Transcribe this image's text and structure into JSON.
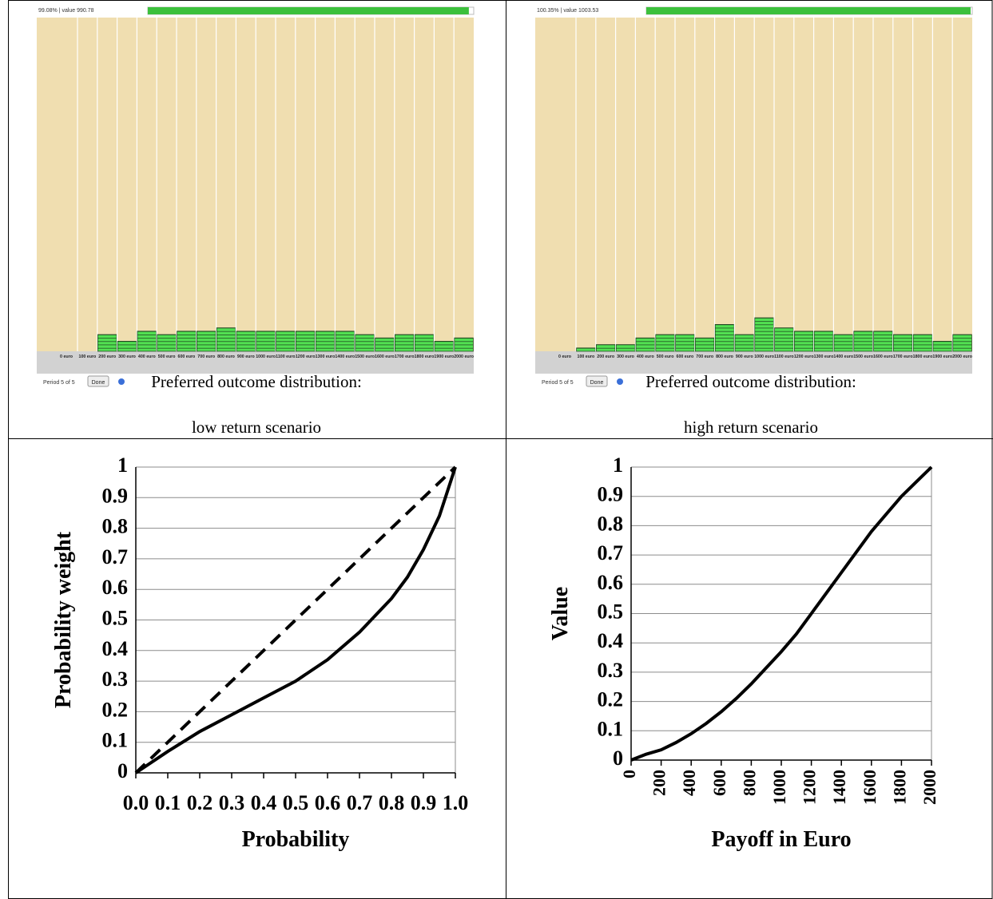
{
  "ui": [
    {
      "status": "99.08% | value 990.78",
      "period": "Period 5 of 5",
      "button": "Done",
      "caption": [
        "Preferred outcome distribution:",
        "low return scenario"
      ]
    },
    {
      "status": "100.35% | value 1003.53",
      "period": "Period 5 of 5",
      "button": "Done",
      "caption": [
        "Preferred outcome distribution:",
        "high return scenario"
      ]
    }
  ],
  "chart_data": [
    {
      "type": "bar",
      "color": "#52e052",
      "categories": [
        "0 euro",
        "100 euro",
        "200 euro",
        "300 euro",
        "400 euro",
        "500 euro",
        "600 euro",
        "700 euro",
        "800 euro",
        "900 euro",
        "1000 euro",
        "1100 euro",
        "1200 euro",
        "1300 euro",
        "1400 euro",
        "1500 euro",
        "1600 euro",
        "1700 euro",
        "1800 euro",
        "1900 euro",
        "2000 euro"
      ],
      "values": [
        0,
        0,
        5,
        3,
        6,
        5,
        6,
        6,
        7,
        6,
        6,
        6,
        6,
        6,
        6,
        5,
        4,
        5,
        5,
        3,
        4
      ]
    },
    {
      "type": "bar",
      "color": "#52e052",
      "categories": [
        "0 euro",
        "100 euro",
        "200 euro",
        "300 euro",
        "400 euro",
        "500 euro",
        "600 euro",
        "700 euro",
        "800 euro",
        "900 euro",
        "1000 euro",
        "1100 euro",
        "1200 euro",
        "1300 euro",
        "1400 euro",
        "1500 euro",
        "1600 euro",
        "1700 euro",
        "1800 euro",
        "1900 euro",
        "2000 euro"
      ],
      "values": [
        0,
        1,
        2,
        2,
        4,
        5,
        5,
        4,
        8,
        5,
        10,
        7,
        6,
        6,
        5,
        6,
        6,
        5,
        5,
        3,
        5
      ]
    },
    {
      "type": "line",
      "x_label": "Probability",
      "y_label": "Probability weight",
      "grid": true,
      "xlim": [
        0,
        1
      ],
      "ylim": [
        0,
        1
      ],
      "xticks": [
        {
          "value": 0,
          "label": "0.0"
        },
        0.1,
        0.2,
        0.3,
        0.4,
        0.5,
        0.6,
        0.7,
        0.8,
        0.9,
        {
          "value": 1,
          "label": "1.0"
        }
      ],
      "yticks": [
        0,
        0.1,
        0.2,
        0.3,
        0.4,
        0.5,
        0.6,
        0.7,
        0.8,
        0.9,
        1
      ],
      "series": [
        {
          "color": "#000000",
          "style": "solid",
          "x": [
            0,
            0.1,
            0.2,
            0.3,
            0.4,
            0.5,
            0.6,
            0.7,
            0.8,
            0.85,
            0.9,
            0.95,
            1
          ],
          "values": [
            0,
            0.07,
            0.135,
            0.19,
            0.245,
            0.3,
            0.37,
            0.46,
            0.57,
            0.64,
            0.73,
            0.84,
            1
          ]
        },
        {
          "color": "#000000",
          "style": "dashed",
          "x": [
            0,
            1
          ],
          "values": [
            0,
            1
          ]
        }
      ]
    },
    {
      "type": "line",
      "x_label": "Payoff in Euro",
      "y_label": "Value",
      "grid": true,
      "x_tick_rotation": -90,
      "xlim": [
        0,
        2000
      ],
      "ylim": [
        0,
        1
      ],
      "xticks": [
        0,
        200,
        400,
        600,
        800,
        1000,
        1200,
        1400,
        1600,
        1800,
        2000
      ],
      "yticks": [
        0,
        0.1,
        0.2,
        0.3,
        0.4,
        0.5,
        0.6,
        0.7,
        0.8,
        0.9,
        1
      ],
      "series": [
        {
          "color": "#000000",
          "style": "solid",
          "x": [
            0,
            100,
            200,
            300,
            400,
            500,
            600,
            700,
            800,
            900,
            1000,
            1100,
            1200,
            1300,
            1400,
            1500,
            1600,
            1700,
            1800,
            1900,
            2000
          ],
          "values": [
            0,
            0.02,
            0.035,
            0.06,
            0.09,
            0.125,
            0.165,
            0.21,
            0.26,
            0.315,
            0.37,
            0.43,
            0.5,
            0.57,
            0.64,
            0.71,
            0.78,
            0.84,
            0.9,
            0.95,
            1
          ]
        }
      ]
    }
  ]
}
